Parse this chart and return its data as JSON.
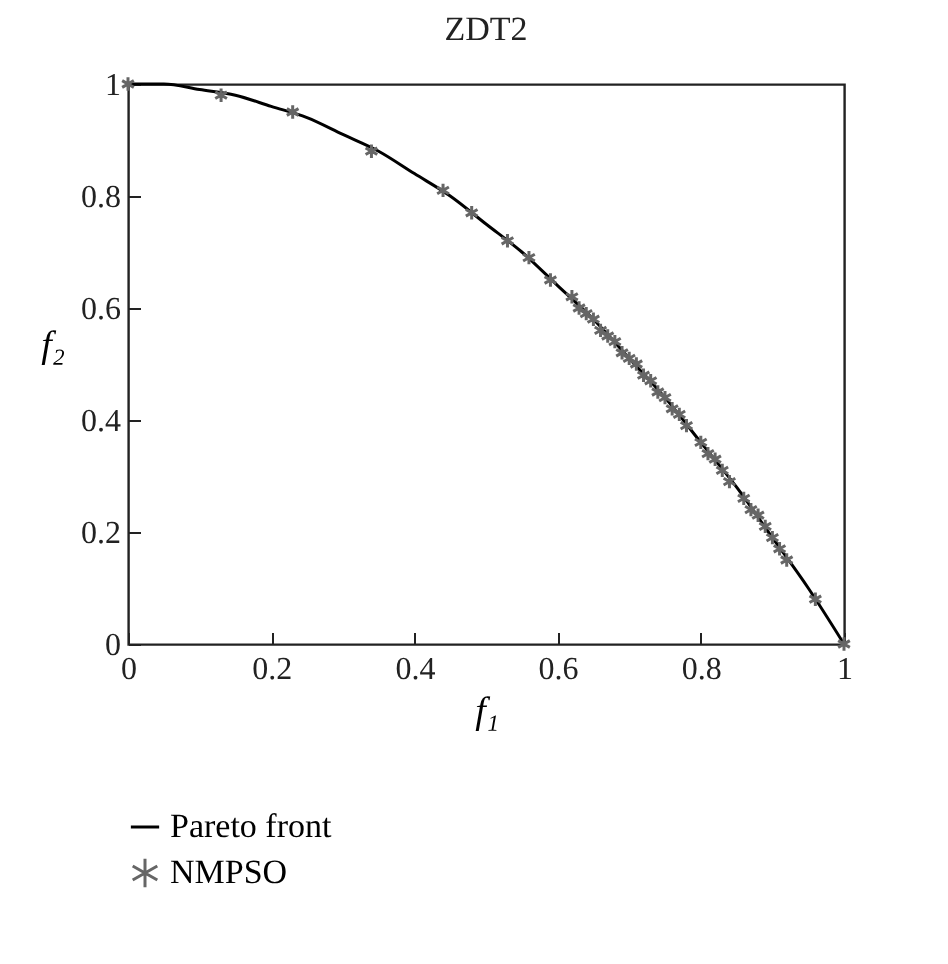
{
  "chart_data": {
    "type": "line",
    "title": "ZDT2",
    "xlabel": "f₁",
    "ylabel": "f₂",
    "xlim": [
      0,
      1
    ],
    "ylim": [
      0,
      1
    ],
    "xticks": [
      0,
      0.2,
      0.4,
      0.6,
      0.8,
      1
    ],
    "yticks": [
      0,
      0.2,
      0.4,
      0.6,
      0.8,
      1
    ],
    "grid": false,
    "legend": "bottom",
    "line_style": "solid",
    "series": [
      {
        "name": "Pareto front",
        "color": "#000000",
        "x": [
          0,
          0.05,
          0.1,
          0.15,
          0.2,
          0.25,
          0.3,
          0.35,
          0.4,
          0.45,
          0.5,
          0.55,
          0.6,
          0.65,
          0.7,
          0.75,
          0.8,
          0.85,
          0.9,
          0.95,
          1
        ],
        "values": [
          1,
          1.0,
          0.99,
          0.98,
          0.96,
          0.94,
          0.91,
          0.88,
          0.84,
          0.8,
          0.75,
          0.7,
          0.64,
          0.58,
          0.51,
          0.44,
          0.36,
          0.28,
          0.19,
          0.1,
          0
        ]
      },
      {
        "name": "NMPSO",
        "type": "scatter",
        "marker": "cross",
        "color": "#666666",
        "x": [
          0,
          0.13,
          0.23,
          0.34,
          0.44,
          0.48,
          0.53,
          0.56,
          0.59,
          0.62,
          0.63,
          0.64,
          0.65,
          0.66,
          0.67,
          0.68,
          0.69,
          0.7,
          0.71,
          0.72,
          0.73,
          0.74,
          0.75,
          0.76,
          0.77,
          0.78,
          0.8,
          0.81,
          0.82,
          0.83,
          0.84,
          0.86,
          0.87,
          0.88,
          0.89,
          0.9,
          0.91,
          0.92,
          0.96,
          1
        ],
        "values": [
          1,
          0.98,
          0.95,
          0.88,
          0.81,
          0.77,
          0.72,
          0.69,
          0.65,
          0.62,
          0.6,
          0.59,
          0.58,
          0.56,
          0.55,
          0.54,
          0.52,
          0.51,
          0.5,
          0.48,
          0.47,
          0.45,
          0.44,
          0.42,
          0.41,
          0.39,
          0.36,
          0.34,
          0.33,
          0.31,
          0.29,
          0.26,
          0.24,
          0.23,
          0.21,
          0.19,
          0.17,
          0.15,
          0.08,
          0
        ]
      }
    ]
  }
}
